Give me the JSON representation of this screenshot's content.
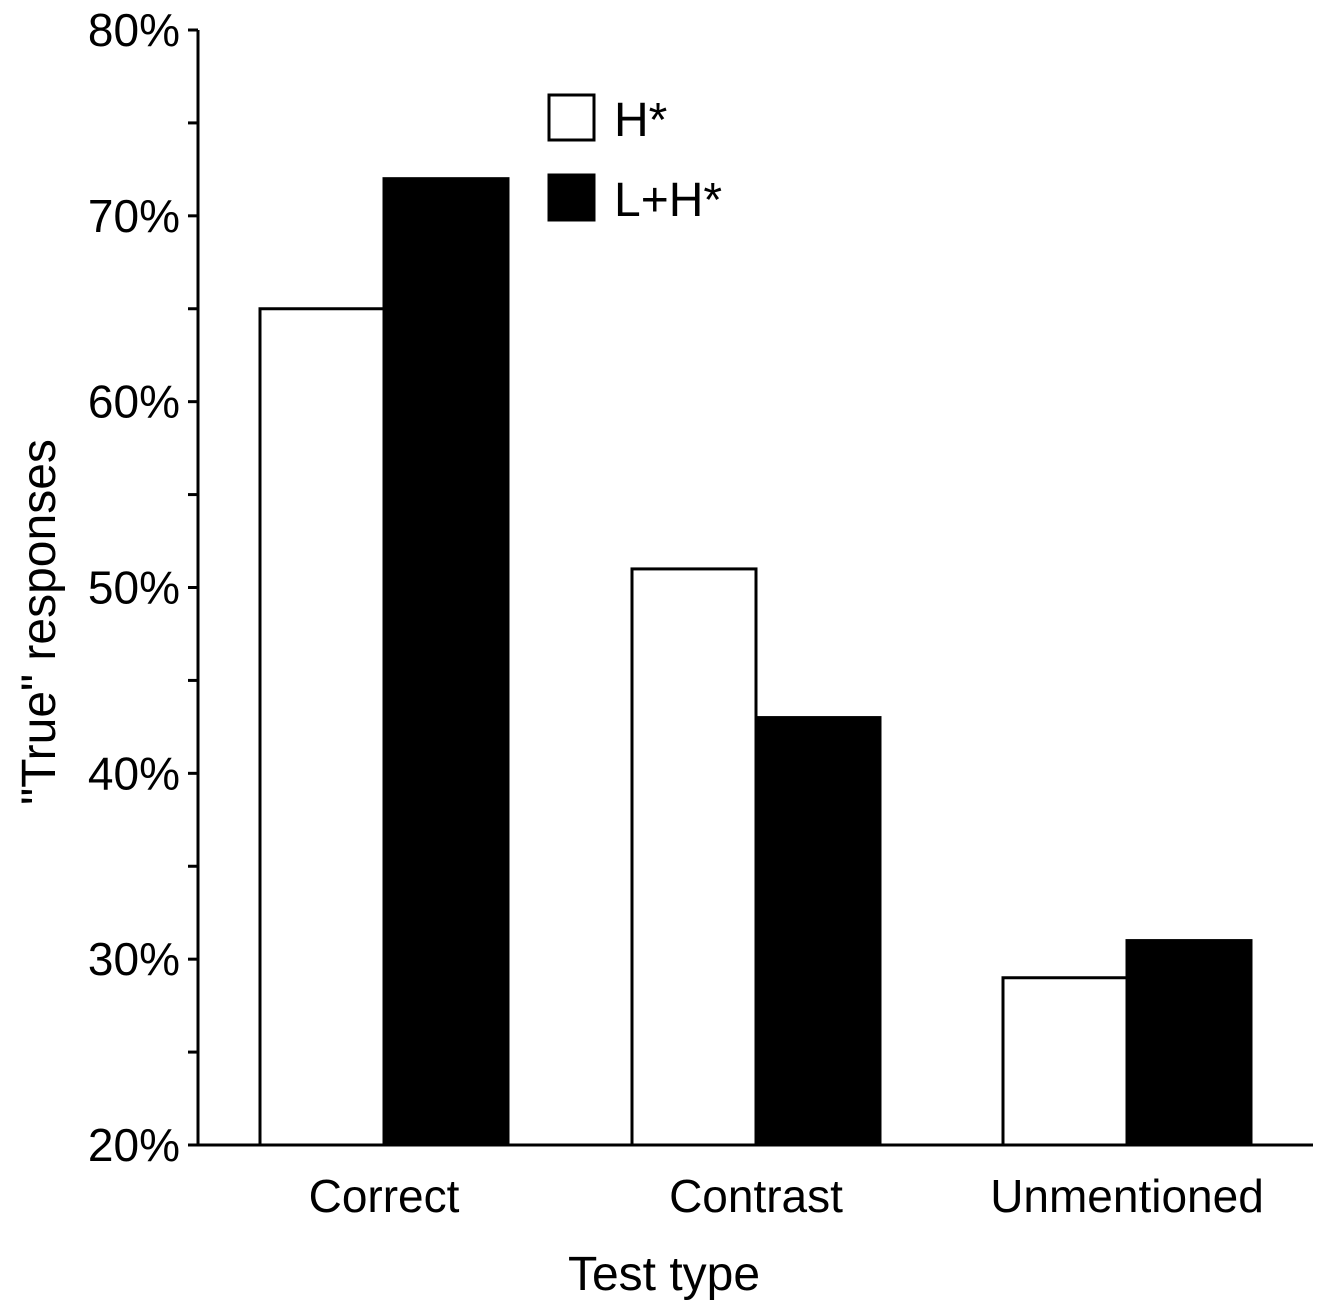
{
  "chart_data": {
    "type": "bar",
    "categories": [
      "Correct",
      "Contrast",
      "Unmentioned"
    ],
    "series": [
      {
        "name": "H*",
        "values": [
          65,
          51,
          29
        ],
        "fill": "#ffffff",
        "stroke": "#000000"
      },
      {
        "name": "L+H*",
        "values": [
          72,
          43,
          31
        ],
        "fill": "#000000",
        "stroke": "#000000"
      }
    ],
    "xlabel": "Test type",
    "ylabel": "\"True\" responses",
    "ylim": [
      20,
      80
    ],
    "yticks": [
      20,
      30,
      40,
      50,
      60,
      70,
      80
    ],
    "ytick_labels": [
      "20%",
      "30%",
      "40%",
      "50%",
      "60%",
      "70%",
      "80%"
    ],
    "minor_ytick_step": 5,
    "legend_position": "top-center",
    "grid": false
  }
}
